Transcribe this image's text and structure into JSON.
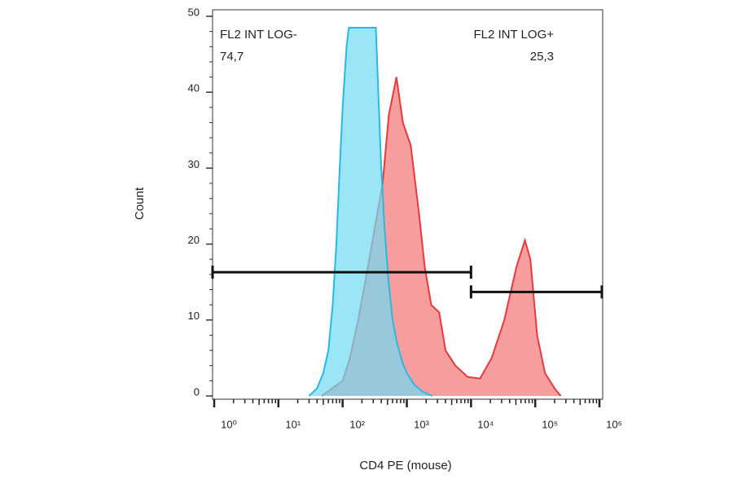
{
  "chart_data": {
    "type": "histogram-overlay",
    "x_label": "CD4 PE (mouse)",
    "y_label": "Count",
    "log_x": true,
    "xlim": [
      1,
      1000000
    ],
    "ylim": [
      0,
      50
    ],
    "xticks": [
      {
        "value": 1,
        "label": "10⁰"
      },
      {
        "value": 10,
        "label": "10¹"
      },
      {
        "value": 100,
        "label": "10²"
      },
      {
        "value": 1000,
        "label": "10³"
      },
      {
        "value": 10000,
        "label": "10⁴"
      },
      {
        "value": 100000,
        "label": "10⁵"
      },
      {
        "value": 1000000,
        "label": "10⁶"
      }
    ],
    "yticks": [
      0,
      10,
      20,
      30,
      40,
      50
    ],
    "series": [
      {
        "color": "#e8393c",
        "fill": "#f58c8c",
        "x": [
          47,
          100,
          130,
          175,
          260,
          420,
          525,
          690,
          870,
          1150,
          1550,
          1900,
          2400,
          3200,
          4000,
          5700,
          8900,
          13800,
          21000,
          33000,
          51000,
          69000,
          84000,
          107000,
          142000,
          200000,
          250000
        ],
        "values": [
          0,
          2,
          5,
          10,
          18,
          28,
          37,
          42,
          36,
          33,
          24,
          17,
          12,
          11,
          6,
          4,
          2.5,
          2.3,
          5,
          10,
          17,
          20.5,
          18,
          8,
          3,
          1,
          0
        ]
      },
      {
        "color": "#29b8e3",
        "fill": "#6fdcf4",
        "x": [
          30,
          40,
          50,
          60,
          70,
          80,
          90,
          100,
          115,
          125,
          330,
          360,
          400,
          450,
          520,
          600,
          700,
          850,
          1000,
          1300,
          1800,
          2500
        ],
        "values": [
          0,
          1,
          3,
          6,
          12,
          20,
          30,
          38,
          46,
          48.5,
          48.5,
          40,
          30,
          22,
          15,
          10,
          7,
          4.5,
          3,
          1.5,
          0.5,
          0
        ]
      }
    ],
    "gates": [
      {
        "name": "FL2 INT LOG-",
        "range": [
          1,
          10000
        ],
        "y": 16.3,
        "value": 74.7,
        "value_label": "74,7"
      },
      {
        "name": "FL2 INT LOG+",
        "range": [
          10000,
          1000000
        ],
        "y": 13.7,
        "value": 25.3,
        "value_label": "25,3"
      }
    ]
  }
}
